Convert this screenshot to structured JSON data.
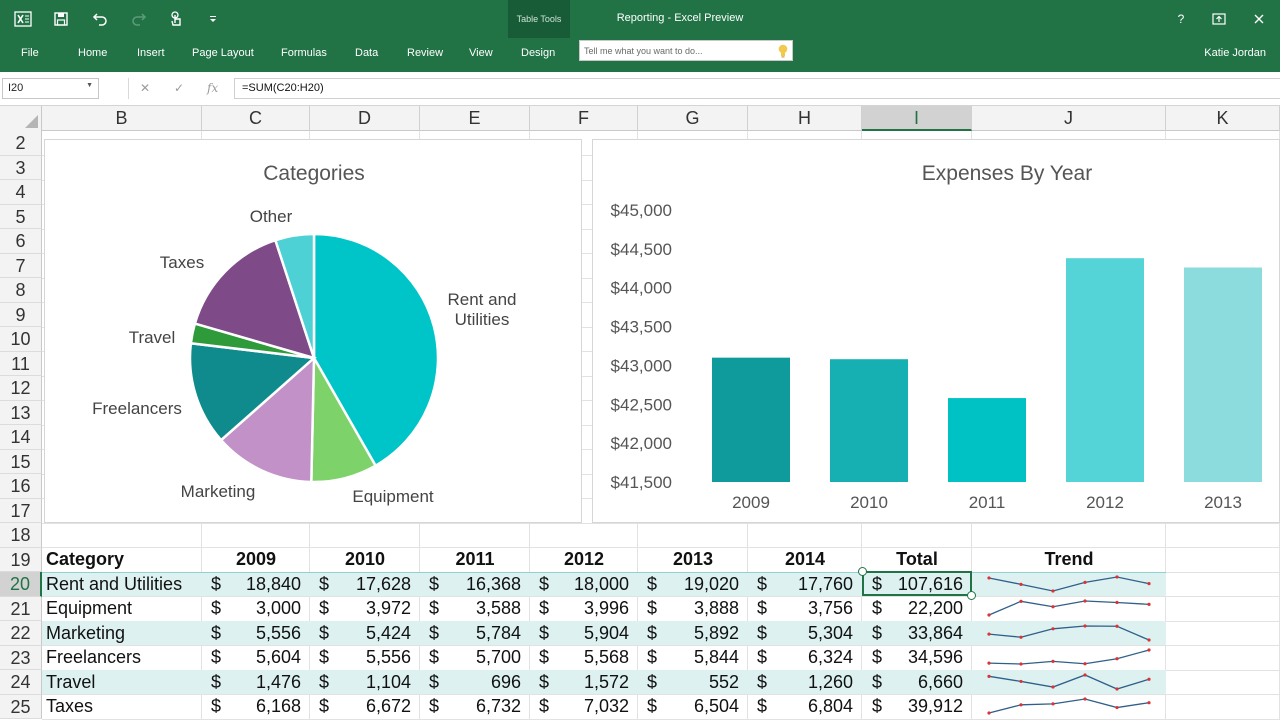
{
  "app": {
    "context_group": "Table Tools",
    "title": "Reporting - Excel Preview",
    "user": "Katie Jordan",
    "help": "?",
    "tabs": [
      "File",
      "Home",
      "Insert",
      "Page Layout",
      "Formulas",
      "Data",
      "Review",
      "View",
      "Design"
    ],
    "tell_me_placeholder": "Tell me what you want to do..."
  },
  "formula_bar": {
    "name_box": "I20",
    "formula": "=SUM(C20:H20)"
  },
  "grid": {
    "columns": [
      "B",
      "C",
      "D",
      "E",
      "F",
      "G",
      "H",
      "I",
      "J",
      "K"
    ],
    "selected_column": "I",
    "rows": [
      "2",
      "3",
      "4",
      "5",
      "6",
      "7",
      "8",
      "9",
      "10",
      "11",
      "12",
      "13",
      "14",
      "15",
      "16",
      "17",
      "18",
      "19",
      "20",
      "21",
      "22",
      "23",
      "24",
      "25"
    ],
    "selected_row": "20"
  },
  "chart_data": [
    {
      "type": "pie",
      "title": "Categories",
      "categories": [
        "Rent and Utilities",
        "Equipment",
        "Marketing",
        "Freelancers",
        "Travel",
        "Taxes",
        "Other"
      ],
      "values": [
        107616,
        22200,
        33864,
        34596,
        6660,
        39912,
        13000
      ],
      "colors": [
        "#00c5c8",
        "#7dd36a",
        "#c191c8",
        "#0f8a8d",
        "#2f9a3a",
        "#7e4a87",
        "#4ed1d4"
      ]
    },
    {
      "type": "bar",
      "title": "Expenses By Year",
      "categories": [
        "2009",
        "2010",
        "2011",
        "2012",
        "2013"
      ],
      "values": [
        43100,
        43080,
        42580,
        44380,
        44260
      ],
      "ylim": [
        41500,
        45000
      ],
      "ytick_labels": [
        "$41,500",
        "$42,000",
        "$42,500",
        "$43,000",
        "$43,500",
        "$44,000",
        "$44,500",
        "$45,000"
      ],
      "yticks": [
        41500,
        42000,
        42500,
        43000,
        43500,
        44000,
        44500,
        45000
      ],
      "colors": [
        "#0f9a9c",
        "#17b0b2",
        "#00c2c4",
        "#55d4d7",
        "#8cdcde"
      ],
      "grid": false
    }
  ],
  "table": {
    "headers": [
      "Category",
      "2009",
      "2010",
      "2011",
      "2012",
      "2013",
      "2014",
      "Total",
      "Trend"
    ],
    "currency": "$",
    "rows": [
      {
        "category": "Rent and Utilities",
        "values": [
          "18,840",
          "17,628",
          "16,368",
          "18,000",
          "19,020",
          "17,760"
        ],
        "total": "107,616",
        "trend": [
          18840,
          17628,
          16368,
          18000,
          19020,
          17760
        ]
      },
      {
        "category": "Equipment",
        "values": [
          "3,000",
          "3,972",
          "3,588",
          "3,996",
          "3,888",
          "3,756"
        ],
        "total": "22,200",
        "trend": [
          3000,
          3972,
          3588,
          3996,
          3888,
          3756
        ]
      },
      {
        "category": "Marketing",
        "values": [
          "5,556",
          "5,424",
          "5,784",
          "5,904",
          "5,892",
          "5,304"
        ],
        "total": "33,864",
        "trend": [
          5556,
          5424,
          5784,
          5904,
          5892,
          5304
        ]
      },
      {
        "category": "Freelancers",
        "values": [
          "5,604",
          "5,556",
          "5,700",
          "5,568",
          "5,844",
          "6,324"
        ],
        "total": "34,596",
        "trend": [
          5604,
          5556,
          5700,
          5568,
          5844,
          6324
        ]
      },
      {
        "category": "Travel",
        "values": [
          "1,476",
          "1,104",
          "696",
          "1,572",
          "552",
          "1,260"
        ],
        "total": "6,660",
        "trend": [
          1476,
          1104,
          696,
          1572,
          552,
          1260
        ]
      },
      {
        "category": "Taxes",
        "values": [
          "6,168",
          "6,672",
          "6,732",
          "7,032",
          "6,504",
          "6,804"
        ],
        "total": "39,912",
        "trend": [
          6168,
          6672,
          6732,
          7032,
          6504,
          6804
        ]
      }
    ]
  }
}
